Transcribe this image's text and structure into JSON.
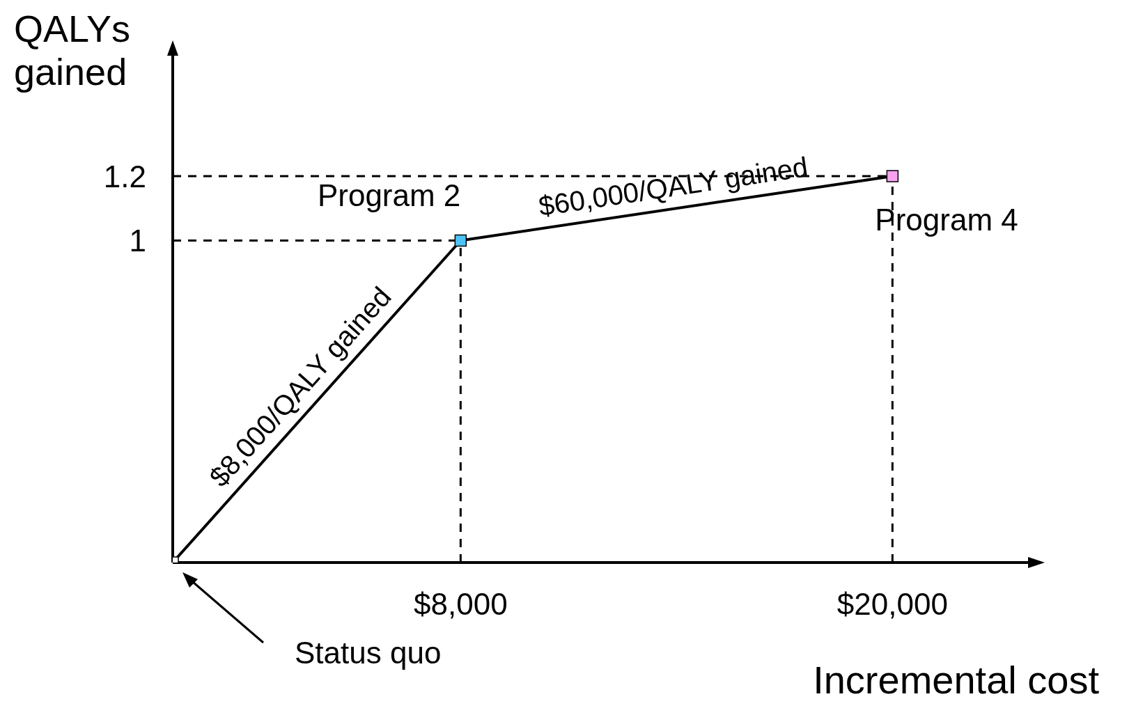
{
  "chart_data": {
    "type": "line",
    "xlabel": "Incremental cost",
    "ylabel": "QALYs gained",
    "x": [
      0,
      8000,
      20000
    ],
    "series": [
      {
        "color": "#000000",
        "values": [
          0,
          1,
          1.2
        ],
        "colors": [
          "#ffffff",
          "#4ec3f5",
          "#f7a1f0"
        ]
      }
    ],
    "xlim": [
      0,
      24000
    ],
    "ylim": [
      0,
      1.6
    ],
    "xticks": [
      {
        "value": 8000,
        "label": "$8,000"
      },
      {
        "value": 20000,
        "label": "$20,000"
      }
    ],
    "yticks": [
      1,
      1.2
    ],
    "marker": "square",
    "line_style": "solid",
    "grid": false,
    "ref_lines": [
      {
        "axis": "y",
        "value": 1,
        "line_style": "dashed",
        "color": "#000000"
      },
      {
        "axis": "y",
        "value": 1.2,
        "line_style": "dashed",
        "color": "#000000"
      },
      {
        "axis": "x",
        "value": 8000,
        "line_style": "dashed",
        "color": "#000000"
      },
      {
        "axis": "x",
        "value": 20000,
        "line_style": "dashed",
        "color": "#000000"
      }
    ],
    "annotations": [
      {
        "text": "Program 2",
        "x": 8000,
        "y": 1
      },
      {
        "text": "Program 4",
        "x": 20000,
        "y": 1.2
      },
      {
        "text": "$8,000/QALY gained",
        "x": 4000,
        "y": 0.5
      },
      {
        "text": "$60,000/QALY gained",
        "x": 14000,
        "y": 1.1
      },
      "Status quo"
    ]
  }
}
